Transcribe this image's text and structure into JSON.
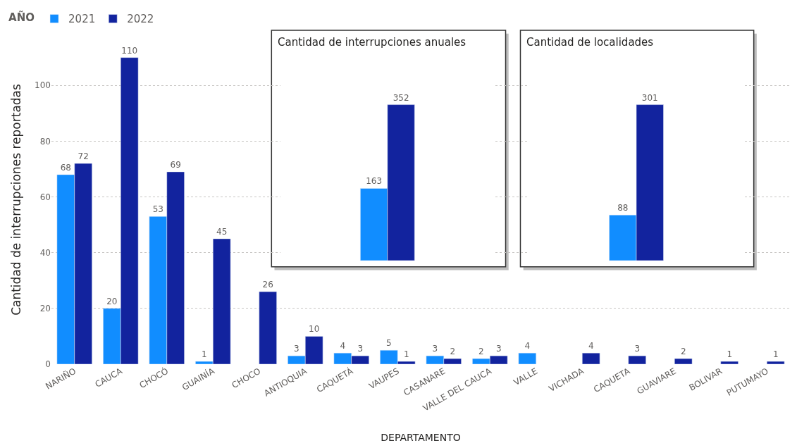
{
  "chart_data": [
    {
      "type": "bar",
      "xlabel": "DEPARTAMENTO",
      "ylabel": "Cantidad de interrupciones reportadas",
      "legend_title": "AÑO",
      "legend": "top left",
      "grid": "y",
      "data_labels": true,
      "ylim": [
        0,
        118
      ],
      "yticks": [
        0,
        20,
        40,
        60,
        80,
        100
      ],
      "categories": [
        "NARIÑO",
        "CAUCA",
        "CHOCÓ",
        "GUAINÍA",
        "CHOCO",
        "ANTIOQUIA",
        "CAQUETÁ",
        "VAUPES",
        "CASANARE",
        "VALLE DEL CAUCA",
        "VALLE",
        "VICHADA",
        "CAQUETA",
        "GUAVIARE",
        "BOLIVAR",
        "PUTUMAYO"
      ],
      "series": [
        {
          "name": "2021",
          "color": "#118dff",
          "values": [
            68,
            20,
            53,
            1,
            null,
            3,
            4,
            5,
            3,
            2,
            4,
            null,
            null,
            null,
            null,
            null
          ]
        },
        {
          "name": "2022",
          "color": "#12239e",
          "values": [
            72,
            110,
            69,
            45,
            26,
            10,
            3,
            1,
            2,
            3,
            null,
            4,
            3,
            2,
            1,
            1
          ]
        }
      ]
    },
    {
      "type": "bar",
      "title": "Cantidad de interrupciones anuales",
      "data_labels": true,
      "categories": [
        null
      ],
      "series": [
        {
          "color": "#118dff",
          "values": [
            163
          ]
        },
        {
          "color": "#12239e",
          "values": [
            352
          ]
        }
      ]
    },
    {
      "type": "bar",
      "title": "Cantidad de localidades",
      "data_labels": true,
      "categories": [
        null
      ],
      "series": [
        {
          "color": "#118dff",
          "values": [
            88
          ]
        },
        {
          "color": "#12239e",
          "values": [
            301
          ]
        }
      ]
    }
  ]
}
